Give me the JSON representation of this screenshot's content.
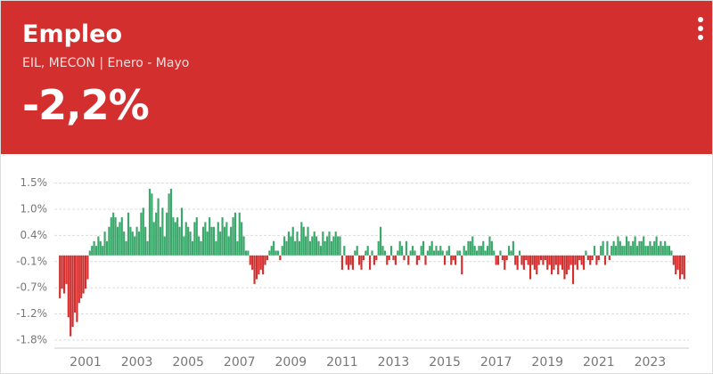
{
  "header": {
    "title": "Empleo",
    "subtitle": "EIL, MECON | Enero - Mayo",
    "value": "-2,2%"
  },
  "chart_data": {
    "type": "bar",
    "categories": [
      null,
      null,
      null,
      null,
      null,
      null,
      null,
      null,
      null,
      null,
      null,
      null,
      "2001",
      null,
      null,
      null,
      null,
      null,
      null,
      null,
      null,
      null,
      null,
      null,
      null,
      null,
      null,
      null,
      null,
      null,
      null,
      null,
      null,
      null,
      null,
      null,
      "2003",
      null,
      null,
      null,
      null,
      null,
      null,
      null,
      null,
      null,
      null,
      null,
      null,
      null,
      null,
      null,
      null,
      null,
      null,
      null,
      null,
      null,
      null,
      null,
      "2005",
      null,
      null,
      null,
      null,
      null,
      null,
      null,
      null,
      null,
      null,
      null,
      null,
      null,
      null,
      null,
      null,
      null,
      null,
      null,
      null,
      null,
      null,
      null,
      "2007",
      null,
      null,
      null,
      null,
      null,
      null,
      null,
      null,
      null,
      null,
      null,
      null,
      null,
      null,
      null,
      null,
      null,
      null,
      null,
      null,
      null,
      null,
      null,
      "2009",
      null,
      null,
      null,
      null,
      null,
      null,
      null,
      null,
      null,
      null,
      null,
      null,
      null,
      null,
      null,
      null,
      null,
      null,
      null,
      null,
      null,
      null,
      null,
      "2011",
      null,
      null,
      null,
      null,
      null,
      null,
      null,
      null,
      null,
      null,
      null,
      null,
      null,
      null,
      null,
      null,
      null,
      null,
      null,
      null,
      null,
      null,
      null,
      "2013",
      null,
      null,
      null,
      null,
      null,
      null,
      null,
      null,
      null,
      null,
      null,
      null,
      null,
      null,
      null,
      null,
      null,
      null,
      null,
      null,
      null,
      null,
      null,
      "2015",
      null,
      null,
      null,
      null,
      null,
      null,
      null,
      null,
      null,
      null,
      null,
      null,
      null,
      null,
      null,
      null,
      null,
      null,
      null,
      null,
      null,
      null,
      null,
      "2017",
      null,
      null,
      null,
      null,
      null,
      null,
      null,
      null,
      null,
      null,
      null,
      null,
      null,
      null,
      null,
      null,
      null,
      null,
      null,
      null,
      null,
      null,
      null,
      "2019",
      null,
      null,
      null,
      null,
      null,
      null,
      null,
      null,
      null,
      null,
      null,
      null,
      null,
      null,
      null,
      null,
      null,
      null,
      null,
      null,
      null,
      null,
      null,
      "2021",
      null,
      null,
      null,
      null,
      null,
      null,
      null,
      null,
      null,
      null,
      null,
      null,
      null,
      null,
      null,
      null,
      null,
      null,
      null,
      null,
      null,
      null,
      null,
      "2023",
      null,
      null,
      null,
      null,
      null,
      null,
      null,
      null,
      null,
      null,
      null,
      null,
      null,
      null,
      null,
      null
    ],
    "values": [
      -0.9,
      -0.7,
      -0.8,
      -0.6,
      -1.3,
      -1.7,
      -1.5,
      -1.2,
      -1.4,
      -1.0,
      -0.9,
      -0.8,
      -0.7,
      -0.5,
      0.1,
      0.2,
      0.3,
      0.2,
      0.4,
      0.3,
      0.2,
      0.5,
      0.3,
      0.6,
      0.8,
      0.9,
      0.8,
      0.6,
      0.7,
      0.8,
      0.5,
      0.3,
      0.9,
      0.6,
      0.5,
      0.4,
      0.6,
      0.5,
      0.9,
      1.0,
      0.6,
      0.3,
      1.4,
      1.3,
      0.7,
      0.9,
      1.2,
      0.6,
      1.0,
      0.4,
      0.9,
      1.3,
      1.4,
      0.8,
      0.7,
      0.8,
      0.6,
      1.0,
      0.4,
      0.7,
      0.6,
      0.5,
      0.3,
      0.7,
      0.8,
      0.4,
      0.3,
      0.6,
      0.7,
      0.5,
      0.8,
      0.6,
      0.6,
      0.3,
      0.7,
      0.5,
      0.8,
      0.6,
      0.7,
      0.4,
      0.6,
      0.8,
      0.9,
      0.3,
      0.9,
      0.7,
      0.4,
      0.1,
      0.1,
      -0.2,
      -0.3,
      -0.6,
      -0.5,
      -0.4,
      -0.3,
      -0.4,
      -0.2,
      -0.1,
      0.1,
      0.2,
      0.3,
      0.1,
      0.1,
      -0.1,
      0.2,
      0.4,
      0.3,
      0.5,
      0.4,
      0.6,
      0.3,
      0.5,
      0.3,
      0.7,
      0.6,
      0.4,
      0.6,
      0.3,
      0.4,
      0.5,
      0.4,
      0.3,
      0.2,
      0.5,
      0.3,
      0.4,
      0.5,
      0.3,
      0.4,
      0.5,
      0.4,
      0.4,
      -0.3,
      0.2,
      -0.2,
      -0.3,
      -0.2,
      -0.3,
      0.1,
      0.2,
      -0.2,
      -0.3,
      -0.1,
      0.1,
      0.2,
      -0.3,
      0.1,
      -0.2,
      -0.1,
      0.3,
      0.6,
      0.2,
      0.1,
      -0.2,
      -0.1,
      0.2,
      -0.1,
      -0.2,
      0.1,
      0.3,
      0.2,
      -0.1,
      0.3,
      -0.2,
      0.1,
      0.2,
      0.1,
      -0.2,
      -0.1,
      0.2,
      0.3,
      -0.2,
      0.1,
      0.2,
      0.3,
      0.1,
      0.2,
      0.1,
      0.2,
      0.1,
      -0.2,
      0.1,
      0.2,
      -0.2,
      -0.1,
      -0.2,
      0.1,
      0.1,
      -0.4,
      0.2,
      0.1,
      0.3,
      0.3,
      0.4,
      0.2,
      0.1,
      0.2,
      0.2,
      0.3,
      0.1,
      0.2,
      0.4,
      0.3,
      0.1,
      -0.2,
      -0.2,
      0.1,
      -0.1,
      -0.3,
      -0.1,
      0.2,
      0.1,
      0.3,
      -0.2,
      -0.3,
      0.1,
      -0.2,
      -0.3,
      -0.1,
      -0.2,
      -0.5,
      -0.2,
      -0.3,
      -0.4,
      -0.2,
      -0.1,
      -0.2,
      -0.1,
      -0.3,
      -0.2,
      -0.4,
      -0.3,
      -0.2,
      -0.4,
      -0.2,
      -0.3,
      -0.5,
      -0.4,
      -0.3,
      -0.2,
      -0.6,
      -0.2,
      -0.3,
      -0.1,
      -0.2,
      -0.3,
      0.1,
      -0.1,
      -0.2,
      -0.1,
      0.2,
      -0.2,
      -0.1,
      0.2,
      0.3,
      -0.2,
      0.3,
      -0.1,
      0.2,
      0.3,
      0.2,
      0.4,
      0.3,
      0.2,
      0.2,
      0.4,
      0.3,
      0.2,
      0.3,
      0.4,
      0.2,
      0.3,
      0.3,
      0.4,
      0.2,
      0.2,
      0.3,
      0.2,
      0.3,
      0.4,
      0.2,
      0.3,
      0.2,
      0.3,
      0.2,
      0.2,
      0.1,
      -0.2,
      -0.4,
      -0.3,
      -0.5,
      -0.4,
      -0.5
    ],
    "positive_color": "#3aa86b",
    "negative_color": "#d32f2f",
    "ylim": [
      -1.95,
      1.7
    ],
    "yticks": [
      {
        "value": 1.52,
        "label": "1.5%"
      },
      {
        "value": 0.97,
        "label": "1.0%"
      },
      {
        "value": 0.42,
        "label": "0.4%"
      },
      {
        "value": -0.13,
        "label": "-0.1%"
      },
      {
        "value": -0.68,
        "label": "-0.7%"
      },
      {
        "value": -1.23,
        "label": "-1.2%"
      },
      {
        "value": -1.78,
        "label": "-1.8%"
      }
    ],
    "grid": true
  }
}
